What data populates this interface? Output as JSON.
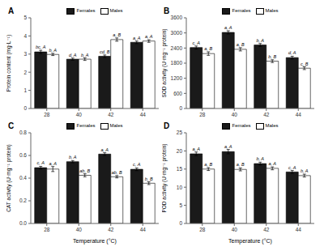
{
  "chart_data": [
    {
      "type": "bar",
      "title": "A",
      "y_label": "Protein content (mg·L⁻¹)",
      "categories": [
        "28",
        "40",
        "42",
        "44"
      ],
      "series": [
        {
          "name": "Females",
          "color": "#1a1a1a",
          "values": [
            3.12,
            2.72,
            2.88,
            3.65
          ],
          "errors": [
            0.09,
            0.06,
            0.07,
            0.07
          ],
          "annotations": [
            "bc, A",
            "d, A",
            "cd, B",
            "a, A"
          ]
        },
        {
          "name": "Males",
          "color": "#ffffff",
          "values": [
            2.98,
            2.72,
            3.8,
            3.72
          ],
          "errors": [
            0.06,
            0.07,
            0.09,
            0.07
          ],
          "annotations": [
            "b, A",
            "b, A",
            "a, B",
            "a, A"
          ]
        }
      ],
      "ylim": [
        0,
        5
      ],
      "yticks": [
        0,
        1,
        2,
        3,
        4,
        5
      ],
      "grid": false,
      "legend": "top"
    },
    {
      "type": "bar",
      "title": "B",
      "y_label": "SOD activity (U·mg⁻¹ protein)",
      "categories": [
        "28",
        "40",
        "42",
        "44"
      ],
      "series": [
        {
          "name": "Females",
          "color": "#1a1a1a",
          "values": [
            2420,
            3020,
            2520,
            2020
          ],
          "errors": [
            60,
            65,
            60,
            55
          ],
          "annotations": [
            "c, A",
            "a, A",
            "b, A",
            "d, A"
          ]
        },
        {
          "name": "Males",
          "color": "#ffffff",
          "values": [
            2180,
            2350,
            1880,
            1600
          ],
          "errors": [
            70,
            65,
            55,
            55
          ],
          "annotations": [
            "a, B",
            "a, B",
            "b, B",
            "c, B"
          ]
        }
      ],
      "ylim": [
        0,
        3600
      ],
      "yticks": [
        0,
        600,
        1200,
        1800,
        2400,
        3000,
        3600
      ],
      "grid": false,
      "legend": "top"
    },
    {
      "type": "bar",
      "title": "C",
      "y_label": "CAT activity (U·mg⁻¹ protein)",
      "x_label": "Temperature (°C)",
      "categories": [
        "28",
        "40",
        "42",
        "44"
      ],
      "series": [
        {
          "name": "Females",
          "color": "#1a1a1a",
          "values": [
            0.492,
            0.545,
            0.612,
            0.478
          ],
          "errors": [
            0.012,
            0.01,
            0.012,
            0.012
          ],
          "annotations": [
            "c, A",
            "b, A",
            "a, A",
            "c, A"
          ]
        },
        {
          "name": "Males",
          "color": "#ffffff",
          "values": [
            0.48,
            0.425,
            0.412,
            0.355
          ],
          "errors": [
            0.022,
            0.013,
            0.01,
            0.012
          ],
          "annotations": [
            "a, A",
            "ab, B",
            "ab, B",
            "b, B"
          ]
        }
      ],
      "ylim": [
        0.0,
        0.8
      ],
      "yticks": [
        {
          "value": 0.0,
          "label": "0.0"
        },
        0.2,
        0.4,
        0.6,
        0.8
      ],
      "grid": false,
      "legend": "top"
    },
    {
      "type": "bar",
      "title": "D",
      "y_label": "POD activity (U·mg⁻¹ protein)",
      "x_label": "Temperature (°C)",
      "categories": [
        "28",
        "40",
        "42",
        "44"
      ],
      "series": [
        {
          "name": "Females",
          "color": "#1a1a1a",
          "values": [
            19.2,
            19.8,
            16.5,
            14.2
          ],
          "errors": [
            0.5,
            0.6,
            0.4,
            0.4
          ],
          "annotations": [
            "a, A",
            "a, A",
            "b, A",
            "c, A"
          ]
        },
        {
          "name": "Males",
          "color": "#ffffff",
          "values": [
            15.0,
            14.9,
            15.2,
            13.2
          ],
          "errors": [
            0.4,
            0.4,
            0.4,
            0.4
          ],
          "annotations": [
            "a, B",
            "a, B",
            "a, A",
            "b, A"
          ]
        }
      ],
      "ylim": [
        0,
        25
      ],
      "yticks": [
        0,
        5,
        10,
        15,
        20,
        25
      ],
      "grid": false,
      "legend": "top"
    }
  ]
}
